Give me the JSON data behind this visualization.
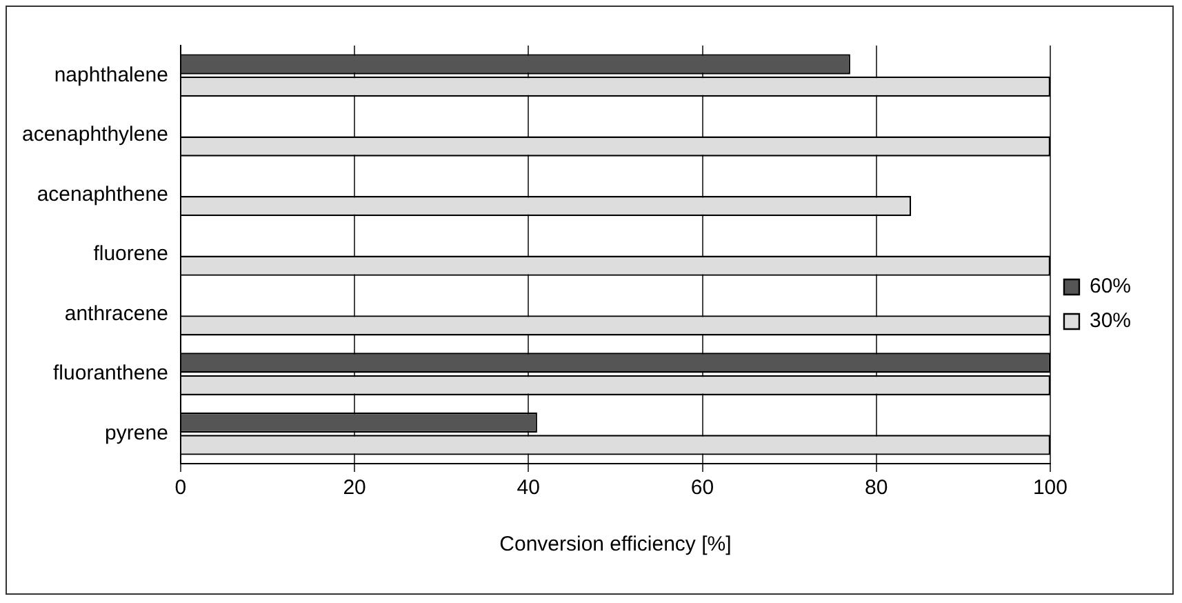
{
  "chart_data": {
    "type": "bar",
    "orientation": "horizontal",
    "xlabel": "Conversion efficiency [%]",
    "categories": [
      "naphthalene",
      "acenaphthylene",
      "acenaphthene",
      "fluorene",
      "anthracene",
      "fluoranthene",
      "pyrene"
    ],
    "series": [
      {
        "name": "60%",
        "color": "#555555",
        "values": [
          77,
          0,
          0,
          0,
          0,
          100,
          41
        ]
      },
      {
        "name": "30%",
        "color": "#dddddd",
        "values": [
          100,
          100,
          84,
          100,
          100,
          100,
          100
        ]
      }
    ],
    "xlim": [
      0,
      100
    ],
    "xticks": [
      0,
      20,
      40,
      60,
      80,
      100
    ],
    "grid": "x",
    "legend": "right"
  }
}
